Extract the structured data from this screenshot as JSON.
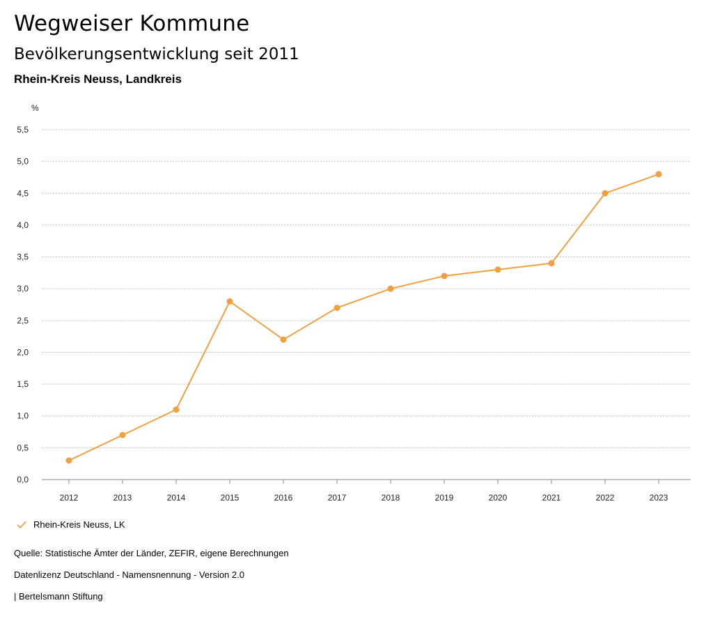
{
  "header": {
    "title": "Wegweiser Kommune",
    "subtitle": "Bevölkerungsentwicklung seit 2011",
    "region": "Rhein-Kreis Neuss, Landkreis"
  },
  "legend": {
    "label": "Rhein-Kreis Neuss, LK"
  },
  "footer": {
    "source": "Quelle: Statistische Ämter der Länder, ZEFIR, eigene Berechnungen",
    "license": "Datenlizenz Deutschland - Namensnennung - Version 2.0",
    "publisher": "| Bertelsmann Stiftung"
  },
  "colors": {
    "series": "#f0a040",
    "grid": "#bfbfbf",
    "axis": "#888888"
  },
  "chart_data": {
    "type": "line",
    "title": "Bevölkerungsentwicklung seit 2011",
    "xlabel": "",
    "ylabel": "%",
    "x": [
      "2012",
      "2013",
      "2014",
      "2015",
      "2016",
      "2017",
      "2018",
      "2019",
      "2020",
      "2021",
      "2022",
      "2023"
    ],
    "ylim": [
      0,
      5.5
    ],
    "yticks": [
      "0,0",
      "0,5",
      "1,0",
      "1,5",
      "2,0",
      "2,5",
      "3,0",
      "3,5",
      "4,0",
      "4,5",
      "5,0",
      "5,5"
    ],
    "grid": true,
    "legend_position": "bottom-left",
    "series": [
      {
        "name": "Rhein-Kreis Neuss, LK",
        "values": [
          0.3,
          0.7,
          1.1,
          2.8,
          2.2,
          2.7,
          3.0,
          3.2,
          3.3,
          3.4,
          4.5,
          4.8
        ]
      }
    ]
  }
}
